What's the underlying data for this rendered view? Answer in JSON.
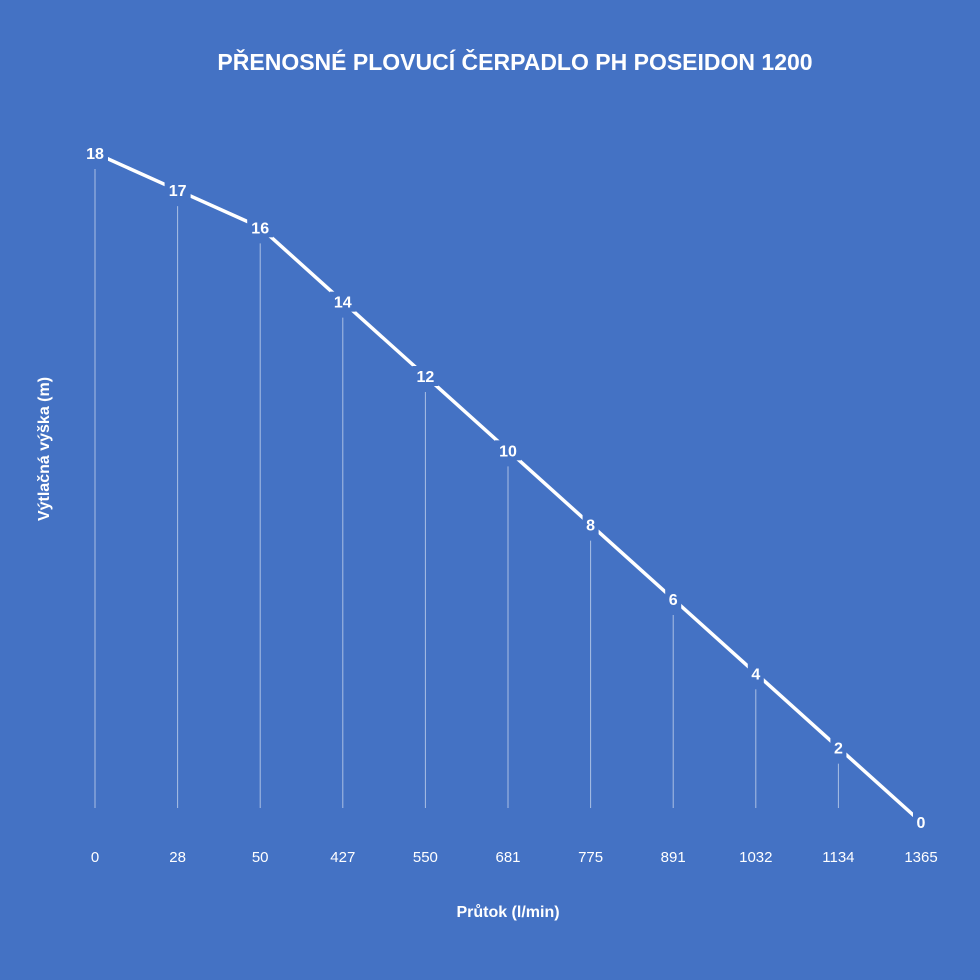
{
  "chart_data": {
    "type": "line",
    "title": "PŘENOSNÉ PLOVUCÍ ČERPADLO PH POSEIDON 1200",
    "xlabel": "Průtok (l/min)",
    "ylabel": "Výtlačná výška (m)",
    "categories": [
      "0",
      "28",
      "50",
      "427",
      "550",
      "681",
      "775",
      "891",
      "1032",
      "1134",
      "1365"
    ],
    "series": [
      {
        "values": [
          18,
          17,
          16,
          14,
          12,
          10,
          8,
          6,
          4,
          2,
          0
        ]
      }
    ],
    "ylim": [
      0,
      18
    ],
    "data_labels": true,
    "drop_lines": true,
    "grid": false,
    "legend": "none",
    "colors": {
      "background": "#4472c4",
      "line": "#ffffff",
      "text": "#ffffff"
    }
  }
}
